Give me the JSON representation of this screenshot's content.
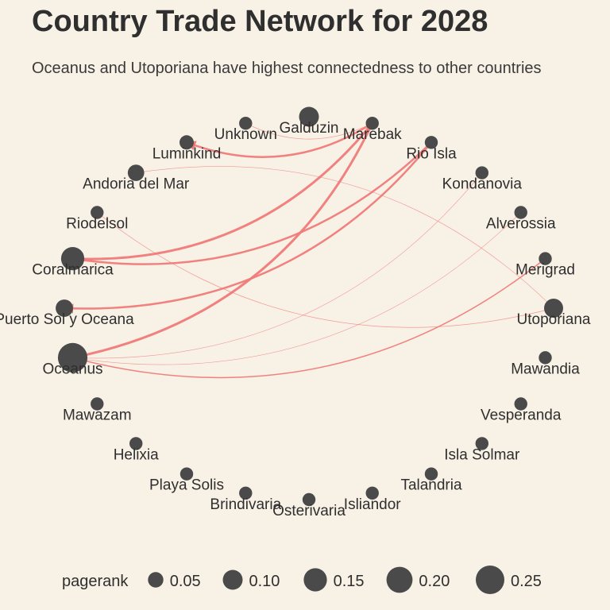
{
  "title": "Country Trade Network for 2028",
  "subtitle": "Oceanus and Utoporiana have highest connectedness to other countries",
  "chart_data": {
    "type": "network",
    "layout": "circle",
    "edge_color": "#f07a78",
    "node_color": "#4a4a4a",
    "nodes": [
      {
        "name": "Marebak",
        "pagerank": 0.03
      },
      {
        "name": "Rio Isla",
        "pagerank": 0.03
      },
      {
        "name": "Kondanovia",
        "pagerank": 0.03
      },
      {
        "name": "Alverossia",
        "pagerank": 0.03
      },
      {
        "name": "Merigrad",
        "pagerank": 0.03
      },
      {
        "name": "Utoporiana",
        "pagerank": 0.09
      },
      {
        "name": "Mawandia",
        "pagerank": 0.03
      },
      {
        "name": "Vesperanda",
        "pagerank": 0.03
      },
      {
        "name": "Isla Solmar",
        "pagerank": 0.03
      },
      {
        "name": "Talandria",
        "pagerank": 0.03
      },
      {
        "name": "Isliandor",
        "pagerank": 0.03
      },
      {
        "name": "Osterivaria",
        "pagerank": 0.03
      },
      {
        "name": "Brindivaria",
        "pagerank": 0.03
      },
      {
        "name": "Playa Solis",
        "pagerank": 0.03
      },
      {
        "name": "Helixia",
        "pagerank": 0.03
      },
      {
        "name": "Mawazam",
        "pagerank": 0.03
      },
      {
        "name": "Oceanus",
        "pagerank": 0.27
      },
      {
        "name": "Puerto Sol y Oceana",
        "pagerank": 0.07
      },
      {
        "name": "Coralmarica",
        "pagerank": 0.15
      },
      {
        "name": "Riodelsol",
        "pagerank": 0.03
      },
      {
        "name": "Andoria del Mar",
        "pagerank": 0.06
      },
      {
        "name": "Luminkind",
        "pagerank": 0.04
      },
      {
        "name": "Unknown",
        "pagerank": 0.03
      },
      {
        "name": "Galduzin",
        "pagerank": 0.1
      }
    ],
    "edges": [
      {
        "from": "Marebak",
        "to": "Coralmarica",
        "weight": 3
      },
      {
        "from": "Marebak",
        "to": "Oceanus",
        "weight": 3
      },
      {
        "from": "Marebak",
        "to": "Luminkind",
        "weight": 2.5
      },
      {
        "from": "Marebak",
        "to": "Unknown",
        "weight": 0.7
      },
      {
        "from": "Rio Isla",
        "to": "Coralmarica",
        "weight": 2.5
      },
      {
        "from": "Rio Isla",
        "to": "Puerto Sol y Oceana",
        "weight": 2.5
      },
      {
        "from": "Merigrad",
        "to": "Oceanus",
        "weight": 1.5
      },
      {
        "from": "Utoporiana",
        "to": "Riodelsol",
        "weight": 0.7
      },
      {
        "from": "Andoria del Mar",
        "to": "Utoporiana",
        "weight": 0.6
      },
      {
        "from": "Kondanovia",
        "to": "Oceanus",
        "weight": 0.6
      },
      {
        "from": "Alverossia",
        "to": "Oceanus",
        "weight": 0.6
      }
    ],
    "legend": {
      "title": "pagerank",
      "position": "bottom",
      "entries": [
        {
          "label": "0.05",
          "value": 0.05
        },
        {
          "label": "0.10",
          "value": 0.1
        },
        {
          "label": "0.15",
          "value": 0.15
        },
        {
          "label": "0.20",
          "value": 0.2
        },
        {
          "label": "0.25",
          "value": 0.25
        }
      ]
    }
  }
}
